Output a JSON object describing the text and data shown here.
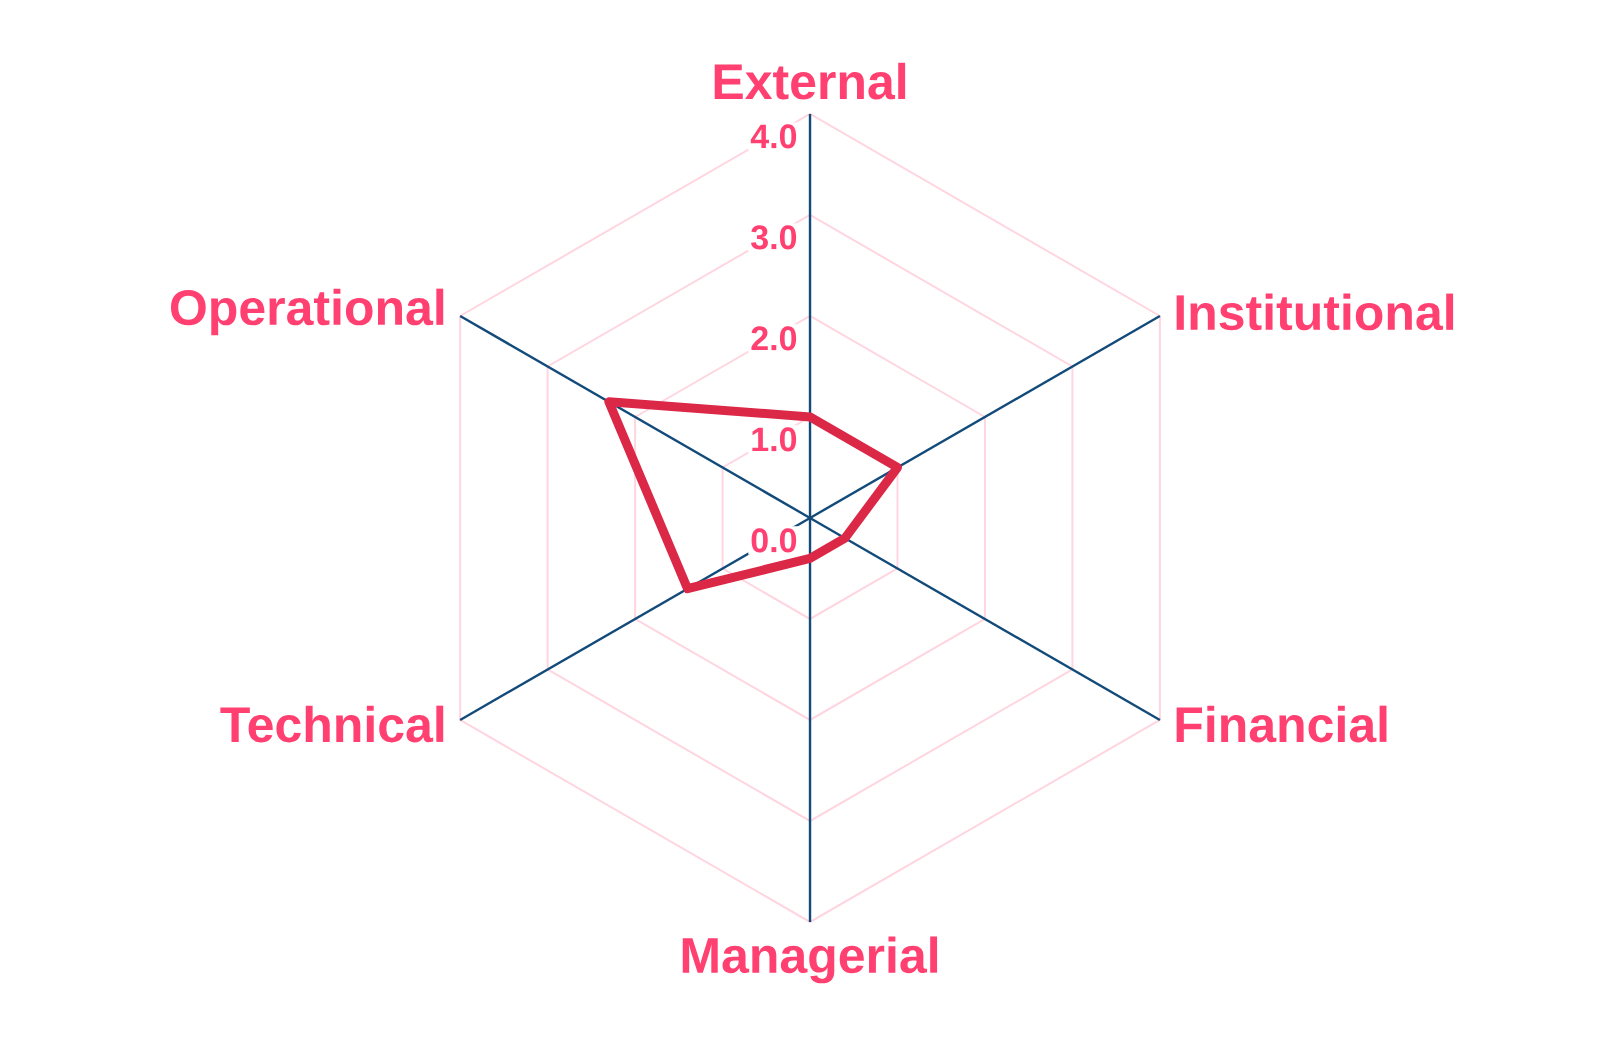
{
  "chart_data": {
    "type": "radar",
    "categories": [
      "External",
      "Institutional",
      "Financial",
      "Managerial",
      "Technical",
      "Operational"
    ],
    "series": [
      {
        "color": "#dc2847",
        "values": [
          1.0,
          1.0,
          0.4,
          0.4,
          1.4,
          2.3
        ]
      }
    ],
    "ylim": [
      0,
      4
    ],
    "yticks": [
      {
        "value": 0,
        "label": "0.0"
      },
      {
        "value": 1,
        "label": "1.0"
      },
      {
        "value": 2,
        "label": "2.0"
      },
      {
        "value": 3,
        "label": "3.0"
      },
      {
        "value": 4,
        "label": "4.0"
      }
    ],
    "grid": true
  }
}
